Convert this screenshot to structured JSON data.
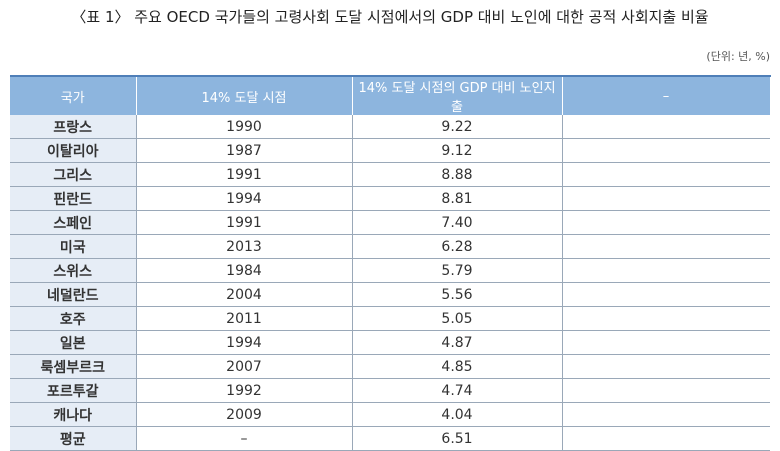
{
  "header": {
    "title": "〈표 1〉 주요 OECD 국가들의 고령사회 도달 시점에서의 GDP 대비 노인에 대한 공적 사회지출 비율",
    "unit": "(단위: 년, %)"
  },
  "table": {
    "columns": [
      "국가",
      "14% 도달 시점",
      "14% 도달 시점의 GDP 대비 노인지출",
      "–"
    ],
    "rows": [
      [
        "프랑스",
        "1990",
        "9.22"
      ],
      [
        "이탈리아",
        "1987",
        "9.12"
      ],
      [
        "그리스",
        "1991",
        "8.88"
      ],
      [
        "핀란드",
        "1994",
        "8.81"
      ],
      [
        "스페인",
        "1991",
        "7.40"
      ],
      [
        "미국",
        "2013",
        "6.28"
      ],
      [
        "스위스",
        "1984",
        "5.79"
      ],
      [
        "네덜란드",
        "2004",
        "5.56"
      ],
      [
        "호주",
        "2011",
        "5.05"
      ],
      [
        "일본",
        "1994",
        "4.87"
      ],
      [
        "룩셈부르크",
        "2007",
        "4.85"
      ],
      [
        "포르투갈",
        "1992",
        "4.74"
      ],
      [
        "캐나다",
        "2009",
        "4.04"
      ],
      [
        "평균",
        "–",
        "6.51"
      ]
    ]
  }
}
